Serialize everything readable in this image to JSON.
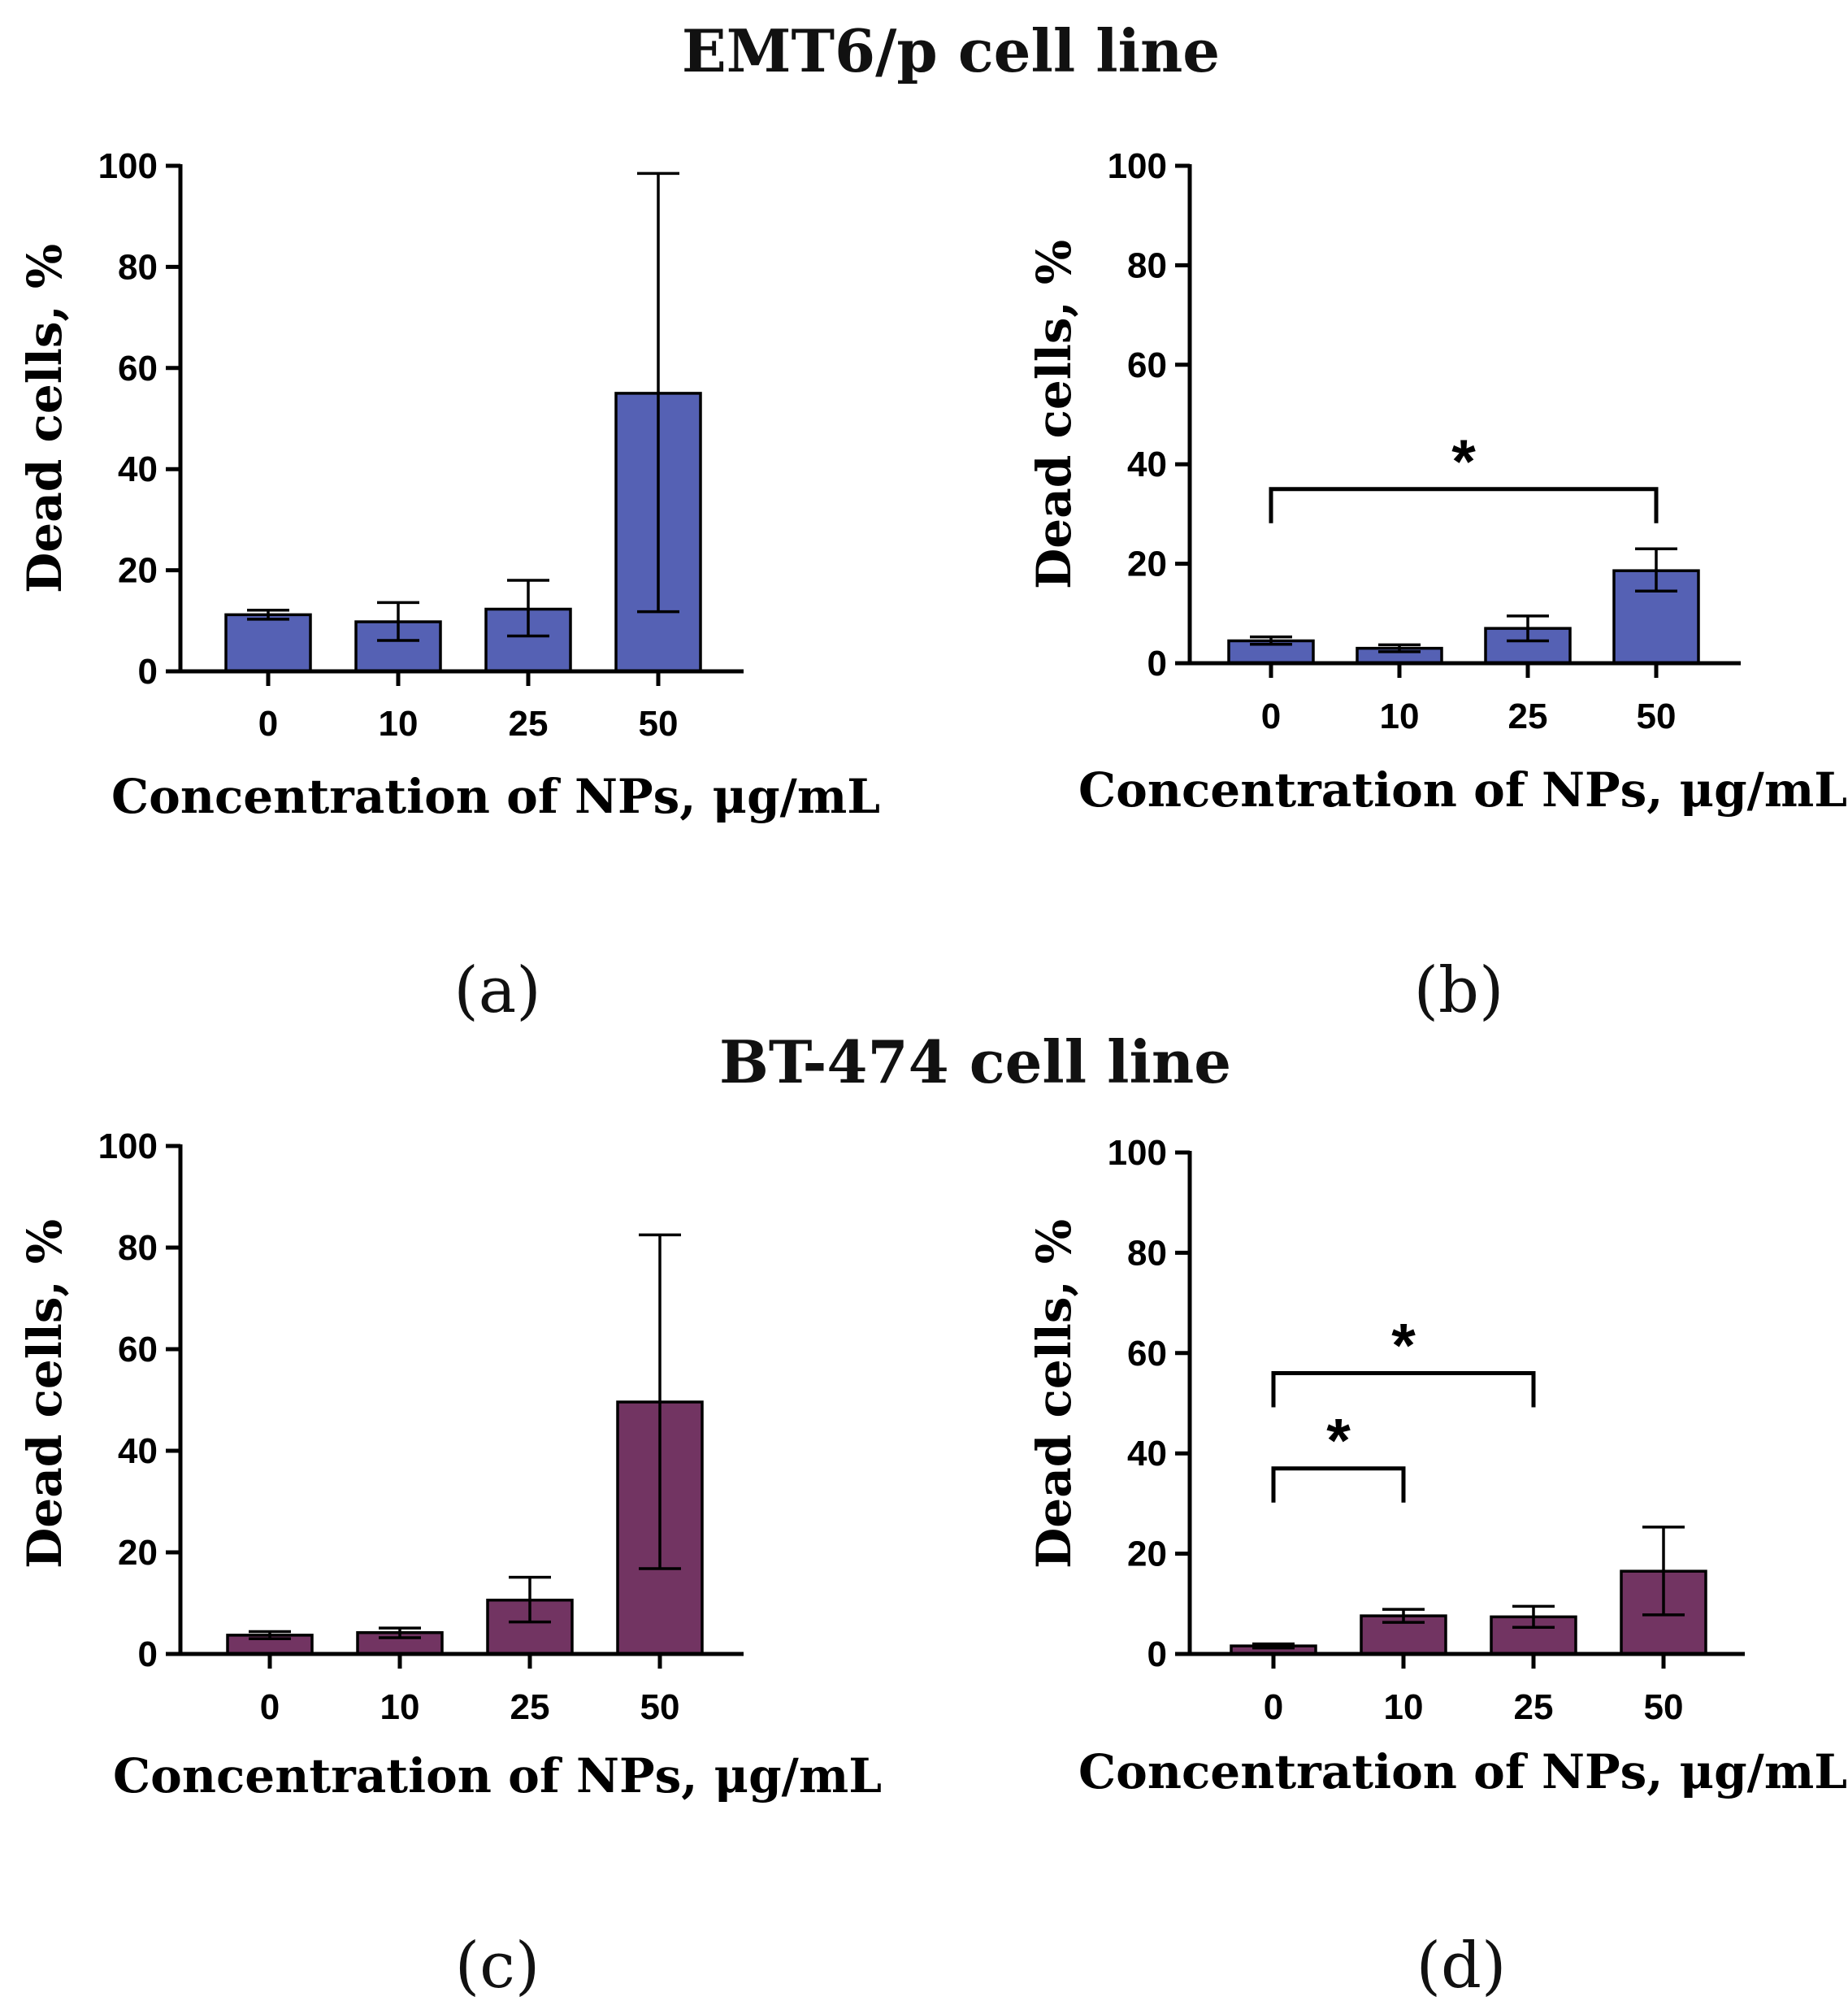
{
  "titles": {
    "emt6": "EMT6/p cell line",
    "bt474": "BT-474 cell line"
  },
  "colors": {
    "emt6_bar": "#5561b4",
    "bt474_bar": "#723462"
  },
  "chart_data": [
    {
      "id": "a",
      "type": "bar",
      "panel_label": "(a)",
      "categories": [
        "0",
        "10",
        "25",
        "50"
      ],
      "values": [
        11.2,
        9.8,
        12.3,
        55.0
      ],
      "error_low": [
        10.3,
        6.1,
        7.0,
        11.8
      ],
      "error_high": [
        12.1,
        13.6,
        18.0,
        98.5
      ],
      "ylim": [
        0,
        100
      ],
      "yticks": [
        "0",
        "20",
        "40",
        "60",
        "80",
        "100"
      ],
      "xlabel": "Concentration of NPs, μg/mL",
      "ylabel": "Dead cells, %",
      "significance": []
    },
    {
      "id": "b",
      "type": "bar",
      "panel_label": "(b)",
      "categories": [
        "0",
        "10",
        "25",
        "50"
      ],
      "values": [
        4.5,
        3.0,
        7.0,
        18.6
      ],
      "error_low": [
        3.8,
        2.3,
        4.5,
        14.5
      ],
      "error_high": [
        5.3,
        3.7,
        9.5,
        23.0
      ],
      "ylim": [
        0,
        100
      ],
      "yticks": [
        "0",
        "20",
        "40",
        "60",
        "80",
        "100"
      ],
      "xlabel": "Concentration of NPs, μg/mL",
      "ylabel": "Dead cells, %",
      "significance": [
        {
          "from": 0,
          "to": 3,
          "level": 35,
          "label": "*"
        }
      ]
    },
    {
      "id": "c",
      "type": "bar",
      "panel_label": "(c)",
      "categories": [
        "0",
        "10",
        "25",
        "50"
      ],
      "values": [
        3.7,
        4.2,
        10.6,
        49.6
      ],
      "error_low": [
        3.0,
        3.2,
        6.3,
        16.8
      ],
      "error_high": [
        4.4,
        5.1,
        15.1,
        82.5
      ],
      "ylim": [
        0,
        100
      ],
      "yticks": [
        "0",
        "20",
        "40",
        "60",
        "80",
        "100"
      ],
      "xlabel": "Concentration of NPs, μg/mL",
      "ylabel": "Dead cells, %",
      "significance": []
    },
    {
      "id": "d",
      "type": "bar",
      "panel_label": "(d)",
      "categories": [
        "0",
        "10",
        "25",
        "50"
      ],
      "values": [
        1.6,
        7.6,
        7.4,
        16.5
      ],
      "error_low": [
        1.2,
        6.3,
        5.3,
        7.8
      ],
      "error_high": [
        2.0,
        8.9,
        9.5,
        25.3
      ],
      "ylim": [
        0,
        100
      ],
      "yticks": [
        "0",
        "20",
        "40",
        "60",
        "80",
        "100"
      ],
      "xlabel": "Concentration of NPs, μg/mL",
      "ylabel": "Dead cells, %",
      "significance": [
        {
          "from": 0,
          "to": 2,
          "level": 56,
          "label": "*"
        },
        {
          "from": 0,
          "to": 1,
          "level": 37,
          "label": "*"
        }
      ]
    }
  ]
}
